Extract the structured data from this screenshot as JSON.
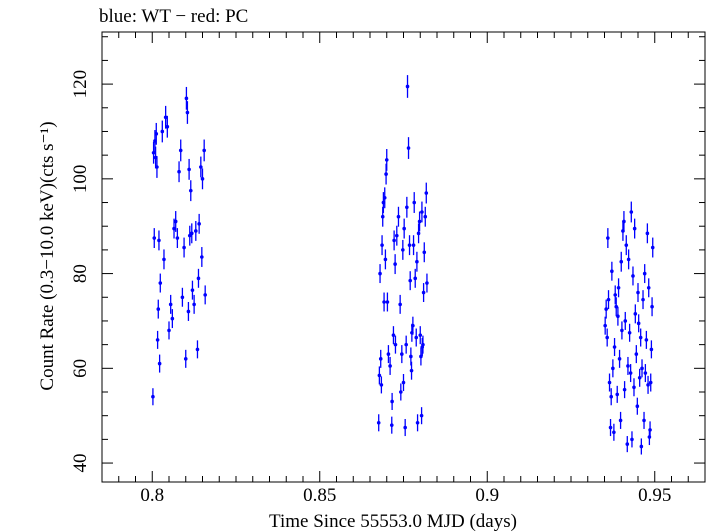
{
  "chart_data": {
    "type": "scatter",
    "title": "blue: WT − red: PC",
    "xlabel": "Time Since 55553.0 MJD (days)",
    "ylabel": "Count Rate (0.3−10.0 keV)(cts s⁻¹)",
    "xlim": [
      0.785,
      0.965
    ],
    "ylim": [
      36,
      131
    ],
    "x_ticks": [
      "0.8",
      "0.85",
      "0.9",
      "0.95"
    ],
    "x_tick_values": [
      0.8,
      0.85,
      0.9,
      0.95
    ],
    "y_ticks": [
      "40",
      "60",
      "80",
      "100",
      "120"
    ],
    "y_tick_values": [
      40,
      60,
      80,
      100,
      120
    ],
    "grid": false,
    "colors": {
      "WT": "#0000ff",
      "PC": "#ff0000"
    },
    "series": [
      {
        "name": "WT",
        "color": "#0000ff",
        "points": [
          [
            0.8002,
            54.0,
            1.8
          ],
          [
            0.8004,
            105.5,
            2.3
          ],
          [
            0.8006,
            87.5,
            2.1
          ],
          [
            0.8008,
            108.0,
            2.3
          ],
          [
            0.801,
            104.5,
            2.3
          ],
          [
            0.8012,
            109.5,
            2.3
          ],
          [
            0.8014,
            102.5,
            2.3
          ],
          [
            0.8016,
            66.0,
            1.9
          ],
          [
            0.8018,
            72.5,
            2.0
          ],
          [
            0.802,
            87.0,
            2.1
          ],
          [
            0.8022,
            61.0,
            1.9
          ],
          [
            0.8024,
            78.0,
            2.0
          ],
          [
            0.803,
            110.0,
            2.3
          ],
          [
            0.8035,
            83.0,
            2.1
          ],
          [
            0.804,
            113.0,
            2.4
          ],
          [
            0.8045,
            111.0,
            2.3
          ],
          [
            0.805,
            68.0,
            1.9
          ],
          [
            0.8055,
            73.5,
            2.0
          ],
          [
            0.806,
            70.5,
            2.0
          ],
          [
            0.8065,
            89.5,
            2.1
          ],
          [
            0.807,
            91.0,
            2.2
          ],
          [
            0.8075,
            87.5,
            2.1
          ],
          [
            0.808,
            101.5,
            2.2
          ],
          [
            0.8085,
            106.0,
            2.3
          ],
          [
            0.809,
            75.0,
            2.0
          ],
          [
            0.8095,
            85.5,
            2.1
          ],
          [
            0.81,
            62.0,
            1.9
          ],
          [
            0.8102,
            117.0,
            2.4
          ],
          [
            0.8105,
            114.0,
            2.4
          ],
          [
            0.8108,
            72.0,
            2.0
          ],
          [
            0.811,
            102.0,
            2.2
          ],
          [
            0.8112,
            88.0,
            2.1
          ],
          [
            0.8115,
            97.5,
            2.2
          ],
          [
            0.8118,
            88.5,
            2.1
          ],
          [
            0.812,
            76.5,
            2.0
          ],
          [
            0.8125,
            73.5,
            2.0
          ],
          [
            0.813,
            89.0,
            2.1
          ],
          [
            0.8135,
            64.0,
            1.9
          ],
          [
            0.8138,
            79.0,
            2.0
          ],
          [
            0.814,
            90.5,
            2.1
          ],
          [
            0.8145,
            102.5,
            2.2
          ],
          [
            0.8148,
            83.5,
            2.1
          ],
          [
            0.815,
            100.0,
            2.2
          ],
          [
            0.8155,
            106.0,
            2.3
          ],
          [
            0.8158,
            75.5,
            2.0
          ],
          [
            0.8676,
            48.5,
            1.8
          ],
          [
            0.8678,
            58.5,
            1.9
          ],
          [
            0.868,
            80.0,
            2.0
          ],
          [
            0.8682,
            62.0,
            1.9
          ],
          [
            0.8684,
            56.5,
            1.8
          ],
          [
            0.8686,
            86.0,
            2.1
          ],
          [
            0.8688,
            92.0,
            2.1
          ],
          [
            0.869,
            95.0,
            2.2
          ],
          [
            0.8692,
            74.0,
            2.0
          ],
          [
            0.8694,
            96.0,
            2.2
          ],
          [
            0.8696,
            83.0,
            2.1
          ],
          [
            0.8698,
            101.0,
            2.2
          ],
          [
            0.87,
            104.0,
            2.3
          ],
          [
            0.8702,
            74.0,
            2.0
          ],
          [
            0.8705,
            63.0,
            1.9
          ],
          [
            0.871,
            60.5,
            1.9
          ],
          [
            0.8715,
            48.0,
            1.8
          ],
          [
            0.872,
            67.0,
            1.9
          ],
          [
            0.8722,
            87.0,
            2.1
          ],
          [
            0.8725,
            82.0,
            2.1
          ],
          [
            0.873,
            88.0,
            2.1
          ],
          [
            0.8735,
            92.0,
            2.1
          ],
          [
            0.874,
            73.5,
            2.0
          ],
          [
            0.8742,
            55.0,
            1.8
          ],
          [
            0.8745,
            63.0,
            1.9
          ],
          [
            0.8748,
            85.0,
            2.1
          ],
          [
            0.875,
            57.0,
            1.8
          ],
          [
            0.8752,
            89.5,
            2.1
          ],
          [
            0.8755,
            47.5,
            1.8
          ],
          [
            0.8758,
            65.0,
            1.9
          ],
          [
            0.876,
            94.0,
            2.2
          ],
          [
            0.8762,
            119.5,
            2.4
          ],
          [
            0.8765,
            106.5,
            2.3
          ],
          [
            0.8768,
            86.0,
            2.1
          ],
          [
            0.877,
            78.5,
            2.0
          ],
          [
            0.8772,
            62.5,
            1.9
          ],
          [
            0.8775,
            67.5,
            1.9
          ],
          [
            0.8778,
            69.0,
            1.9
          ],
          [
            0.878,
            86.0,
            2.1
          ],
          [
            0.8782,
            95.0,
            2.2
          ],
          [
            0.8785,
            79.0,
            2.0
          ],
          [
            0.8788,
            66.5,
            1.9
          ],
          [
            0.879,
            82.5,
            2.1
          ],
          [
            0.8792,
            48.5,
            1.8
          ],
          [
            0.8795,
            88.5,
            2.1
          ],
          [
            0.8798,
            91.0,
            2.1
          ],
          [
            0.88,
            67.0,
            1.9
          ],
          [
            0.8802,
            62.5,
            1.9
          ],
          [
            0.8805,
            93.0,
            2.2
          ],
          [
            0.8808,
            65.0,
            1.9
          ],
          [
            0.881,
            76.0,
            2.0
          ],
          [
            0.8812,
            84.5,
            2.1
          ],
          [
            0.8815,
            92.0,
            2.1
          ],
          [
            0.8818,
            97.0,
            2.2
          ],
          [
            0.882,
            78.0,
            2.0
          ],
          [
            0.8804,
            50.0,
            1.8
          ],
          [
            0.8806,
            64.5,
            1.9
          ],
          [
            0.8774,
            59.5,
            1.9
          ],
          [
            0.8716,
            53.0,
            1.8
          ],
          [
            0.8726,
            65.0,
            1.9
          ],
          [
            0.9352,
            69.0,
            1.9
          ],
          [
            0.9355,
            72.5,
            2.0
          ],
          [
            0.9358,
            66.5,
            1.9
          ],
          [
            0.936,
            87.5,
            2.1
          ],
          [
            0.9362,
            74.5,
            2.0
          ],
          [
            0.9365,
            57.0,
            1.9
          ],
          [
            0.9368,
            47.5,
            1.8
          ],
          [
            0.937,
            54.0,
            1.8
          ],
          [
            0.9372,
            80.5,
            2.0
          ],
          [
            0.9375,
            60.0,
            1.9
          ],
          [
            0.9378,
            46.5,
            1.8
          ],
          [
            0.938,
            64.5,
            1.9
          ],
          [
            0.9382,
            75.5,
            2.0
          ],
          [
            0.9385,
            73.0,
            2.0
          ],
          [
            0.9388,
            54.5,
            1.8
          ],
          [
            0.939,
            71.0,
            2.0
          ],
          [
            0.9392,
            77.0,
            2.0
          ],
          [
            0.9395,
            62.0,
            1.9
          ],
          [
            0.9398,
            49.0,
            1.8
          ],
          [
            0.94,
            82.5,
            2.1
          ],
          [
            0.9402,
            68.0,
            1.9
          ],
          [
            0.9405,
            89.0,
            2.1
          ],
          [
            0.9408,
            91.0,
            2.2
          ],
          [
            0.941,
            55.5,
            1.8
          ],
          [
            0.9412,
            70.0,
            1.9
          ],
          [
            0.9415,
            86.0,
            2.1
          ],
          [
            0.9418,
            44.0,
            1.7
          ],
          [
            0.942,
            60.5,
            1.9
          ],
          [
            0.9422,
            83.0,
            2.1
          ],
          [
            0.9425,
            67.5,
            1.9
          ],
          [
            0.9428,
            59.0,
            1.9
          ],
          [
            0.943,
            93.0,
            2.2
          ],
          [
            0.9432,
            45.0,
            1.7
          ],
          [
            0.9435,
            79.5,
            2.0
          ],
          [
            0.9438,
            56.0,
            1.9
          ],
          [
            0.944,
            89.5,
            2.1
          ],
          [
            0.9442,
            71.5,
            2.0
          ],
          [
            0.9445,
            63.0,
            1.9
          ],
          [
            0.9448,
            52.0,
            1.8
          ],
          [
            0.945,
            76.0,
            2.0
          ],
          [
            0.9452,
            69.5,
            1.9
          ],
          [
            0.9455,
            58.0,
            1.9
          ],
          [
            0.9458,
            66.5,
            1.9
          ],
          [
            0.946,
            43.5,
            1.7
          ],
          [
            0.9462,
            60.0,
            1.9
          ],
          [
            0.9465,
            74.5,
            2.0
          ],
          [
            0.9468,
            49.0,
            1.8
          ],
          [
            0.947,
            80.0,
            2.0
          ],
          [
            0.9472,
            59.0,
            1.9
          ],
          [
            0.9475,
            66.0,
            1.9
          ],
          [
            0.9478,
            88.5,
            2.1
          ],
          [
            0.948,
            56.5,
            1.9
          ],
          [
            0.9482,
            77.0,
            2.0
          ],
          [
            0.9484,
            45.5,
            1.7
          ],
          [
            0.9486,
            47.0,
            1.8
          ],
          [
            0.9488,
            57.0,
            1.9
          ],
          [
            0.949,
            64.0,
            1.9
          ],
          [
            0.9492,
            73.0,
            2.0
          ],
          [
            0.9494,
            85.5,
            2.1
          ]
        ]
      }
    ]
  }
}
